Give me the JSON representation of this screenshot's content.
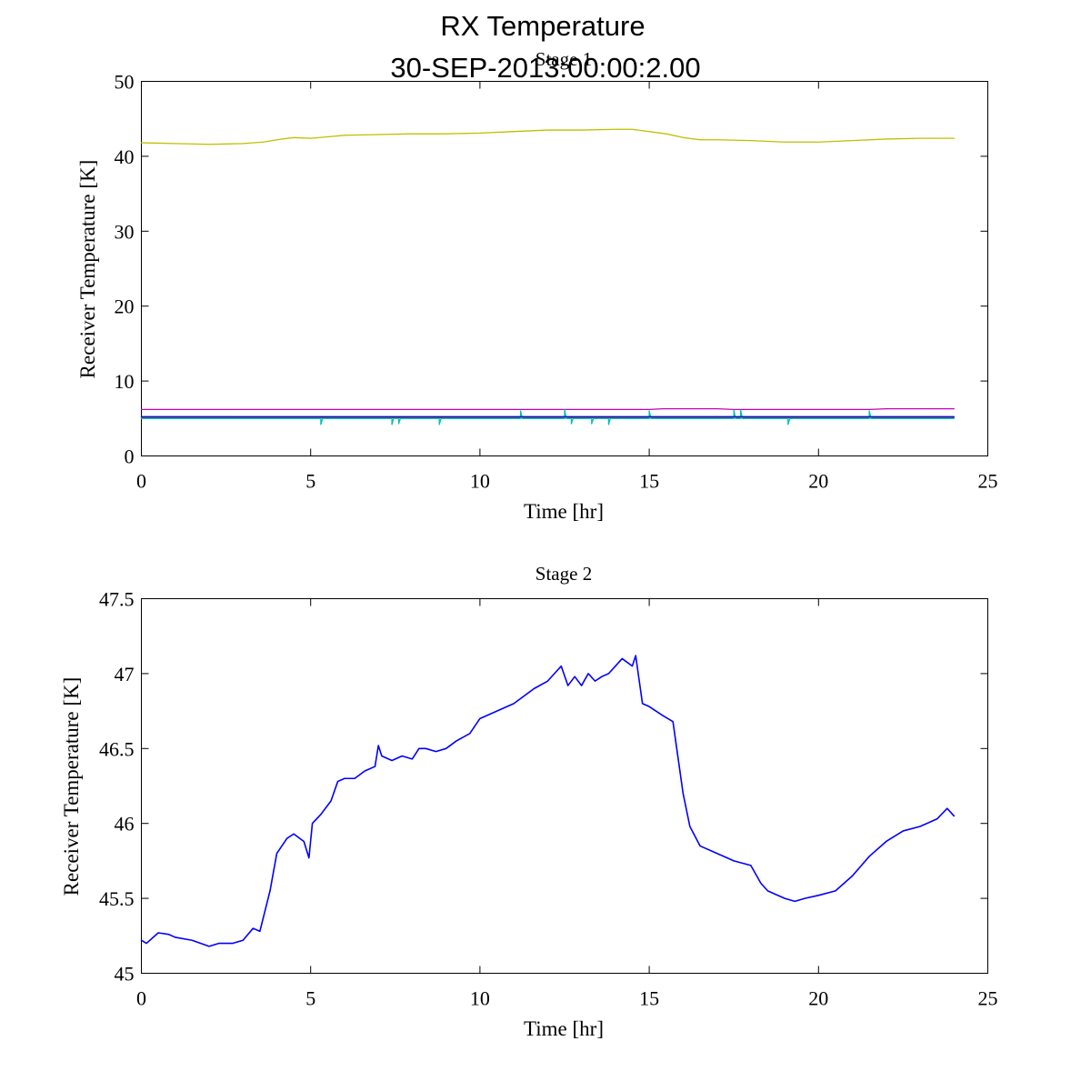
{
  "figure": {
    "title_line1": "RX Temperature",
    "title_line2": "30-SEP-2013:00:00:2.00"
  },
  "chart_data": [
    {
      "type": "line",
      "title": "Stage 1",
      "xlabel": "Time [hr]",
      "ylabel": "Receiver Temperature [K]",
      "xlim": [
        0,
        25
      ],
      "ylim": [
        0,
        50
      ],
      "xticks": [
        0,
        5,
        10,
        15,
        20,
        25
      ],
      "xtick_labels": [
        "0",
        "5",
        "10",
        "15",
        "20",
        "25"
      ],
      "yticks": [
        0,
        10,
        20,
        30,
        40,
        50
      ],
      "ytick_labels": [
        "0",
        "10",
        "20",
        "30",
        "40",
        "50"
      ],
      "grid": false,
      "series": [
        {
          "name": "yellow",
          "color": "#bfbf00",
          "x": [
            0,
            1,
            2,
            3,
            3.6,
            4,
            4.5,
            5,
            5.5,
            6,
            7,
            8,
            9,
            10,
            11,
            12,
            12.5,
            13,
            14,
            14.5,
            15,
            15.5,
            16,
            16.5,
            17,
            18,
            19,
            20,
            21,
            22,
            23,
            24
          ],
          "y": [
            41.8,
            41.7,
            41.6,
            41.7,
            41.9,
            42.2,
            42.5,
            42.4,
            42.6,
            42.8,
            42.9,
            43.0,
            43.0,
            43.1,
            43.3,
            43.5,
            43.5,
            43.5,
            43.6,
            43.6,
            43.3,
            43.0,
            42.5,
            42.2,
            42.2,
            42.1,
            41.9,
            41.9,
            42.1,
            42.3,
            42.4,
            42.4
          ]
        },
        {
          "name": "magenta",
          "color": "#bf00bf",
          "x": [
            0,
            5,
            10,
            15,
            15.4,
            16,
            17,
            17.5,
            18,
            20,
            21.5,
            22,
            24
          ],
          "y": [
            6.2,
            6.2,
            6.2,
            6.2,
            6.3,
            6.3,
            6.3,
            6.2,
            6.2,
            6.2,
            6.2,
            6.3,
            6.3
          ]
        },
        {
          "name": "red",
          "color": "#ff0000",
          "x": [
            0,
            24
          ],
          "y": [
            5.1,
            5.1
          ]
        },
        {
          "name": "green",
          "color": "#008000",
          "x": [
            0,
            24
          ],
          "y": [
            5.2,
            5.2
          ]
        },
        {
          "name": "cyan",
          "color": "#00bfbf",
          "x": [
            0,
            3,
            5.3,
            5.3,
            5.35,
            7.4,
            7.4,
            7.45,
            7.6,
            7.6,
            7.65,
            8.8,
            8.8,
            8.85,
            11.2,
            11.2,
            11.25,
            12.5,
            12.5,
            12.55,
            12.7,
            12.7,
            12.75,
            13.3,
            13.3,
            13.35,
            13.8,
            13.8,
            13.85,
            15,
            15,
            15.05,
            17.5,
            17.5,
            17.55,
            17.7,
            17.7,
            17.75,
            19.1,
            19.1,
            19.15,
            21.5,
            21.5,
            21.55,
            24
          ],
          "y": [
            5.0,
            5.0,
            5.0,
            4.2,
            5.0,
            5.0,
            4.2,
            5.0,
            5.0,
            4.3,
            5.0,
            5.0,
            4.2,
            5.0,
            5.0,
            6.0,
            5.0,
            5.0,
            6.2,
            5.0,
            5.0,
            4.3,
            5.0,
            5.0,
            4.3,
            5.0,
            5.0,
            4.2,
            5.0,
            5.0,
            6.0,
            5.0,
            5.0,
            6.1,
            5.0,
            5.0,
            6.1,
            5.0,
            5.0,
            4.2,
            5.0,
            5.0,
            6.0,
            5.0,
            5.0
          ]
        },
        {
          "name": "blue",
          "color": "#0000ff",
          "x": [
            0,
            24
          ],
          "y": [
            5.25,
            5.25
          ]
        }
      ]
    },
    {
      "type": "line",
      "title": "Stage 2",
      "xlabel": "Time [hr]",
      "ylabel": "Receiver Temperature [K]",
      "xlim": [
        0,
        25
      ],
      "ylim": [
        45,
        47.5
      ],
      "xticks": [
        0,
        5,
        10,
        15,
        20,
        25
      ],
      "xtick_labels": [
        "0",
        "5",
        "10",
        "15",
        "20",
        "25"
      ],
      "yticks": [
        45,
        45.5,
        46,
        46.5,
        47,
        47.5
      ],
      "ytick_labels": [
        "45",
        "45.5",
        "46",
        "46.5",
        "47",
        "47.5"
      ],
      "grid": false,
      "series": [
        {
          "name": "stage2",
          "color": "#0000ff",
          "x": [
            0,
            0.15,
            0.5,
            0.8,
            1.0,
            1.5,
            2.0,
            2.3,
            2.7,
            3.0,
            3.3,
            3.5,
            3.8,
            4.0,
            4.3,
            4.5,
            4.8,
            4.95,
            5.05,
            5.3,
            5.6,
            5.8,
            6.0,
            6.3,
            6.6,
            6.9,
            7.0,
            7.1,
            7.4,
            7.7,
            8.0,
            8.2,
            8.4,
            8.7,
            9.0,
            9.3,
            9.7,
            10.0,
            10.5,
            11.0,
            11.3,
            11.6,
            12.0,
            12.2,
            12.4,
            12.6,
            12.8,
            13.0,
            13.2,
            13.4,
            13.6,
            13.8,
            14.0,
            14.2,
            14.5,
            14.6,
            14.8,
            15.0,
            15.4,
            15.7,
            16.0,
            16.2,
            16.5,
            17.0,
            17.5,
            18.0,
            18.3,
            18.5,
            19.0,
            19.3,
            19.6,
            20.0,
            20.5,
            21.0,
            21.5,
            22.0,
            22.5,
            23.0,
            23.5,
            23.8,
            24.0
          ],
          "y": [
            45.22,
            45.2,
            45.27,
            45.26,
            45.24,
            45.22,
            45.18,
            45.2,
            45.2,
            45.22,
            45.3,
            45.28,
            45.55,
            45.8,
            45.9,
            45.93,
            45.88,
            45.77,
            46.0,
            46.06,
            46.15,
            46.28,
            46.3,
            46.3,
            46.35,
            46.38,
            46.52,
            46.45,
            46.42,
            46.45,
            46.43,
            46.5,
            46.5,
            46.48,
            46.5,
            46.55,
            46.6,
            46.7,
            46.75,
            46.8,
            46.85,
            46.9,
            46.95,
            47.0,
            47.05,
            46.92,
            46.98,
            46.92,
            47.0,
            46.95,
            46.98,
            47.0,
            47.05,
            47.1,
            47.05,
            47.12,
            46.8,
            46.78,
            46.72,
            46.68,
            46.2,
            45.98,
            45.85,
            45.8,
            45.75,
            45.72,
            45.6,
            45.55,
            45.5,
            45.48,
            45.5,
            45.52,
            45.55,
            45.65,
            45.78,
            45.88,
            45.95,
            45.98,
            46.03,
            46.1,
            46.05
          ]
        }
      ]
    }
  ]
}
